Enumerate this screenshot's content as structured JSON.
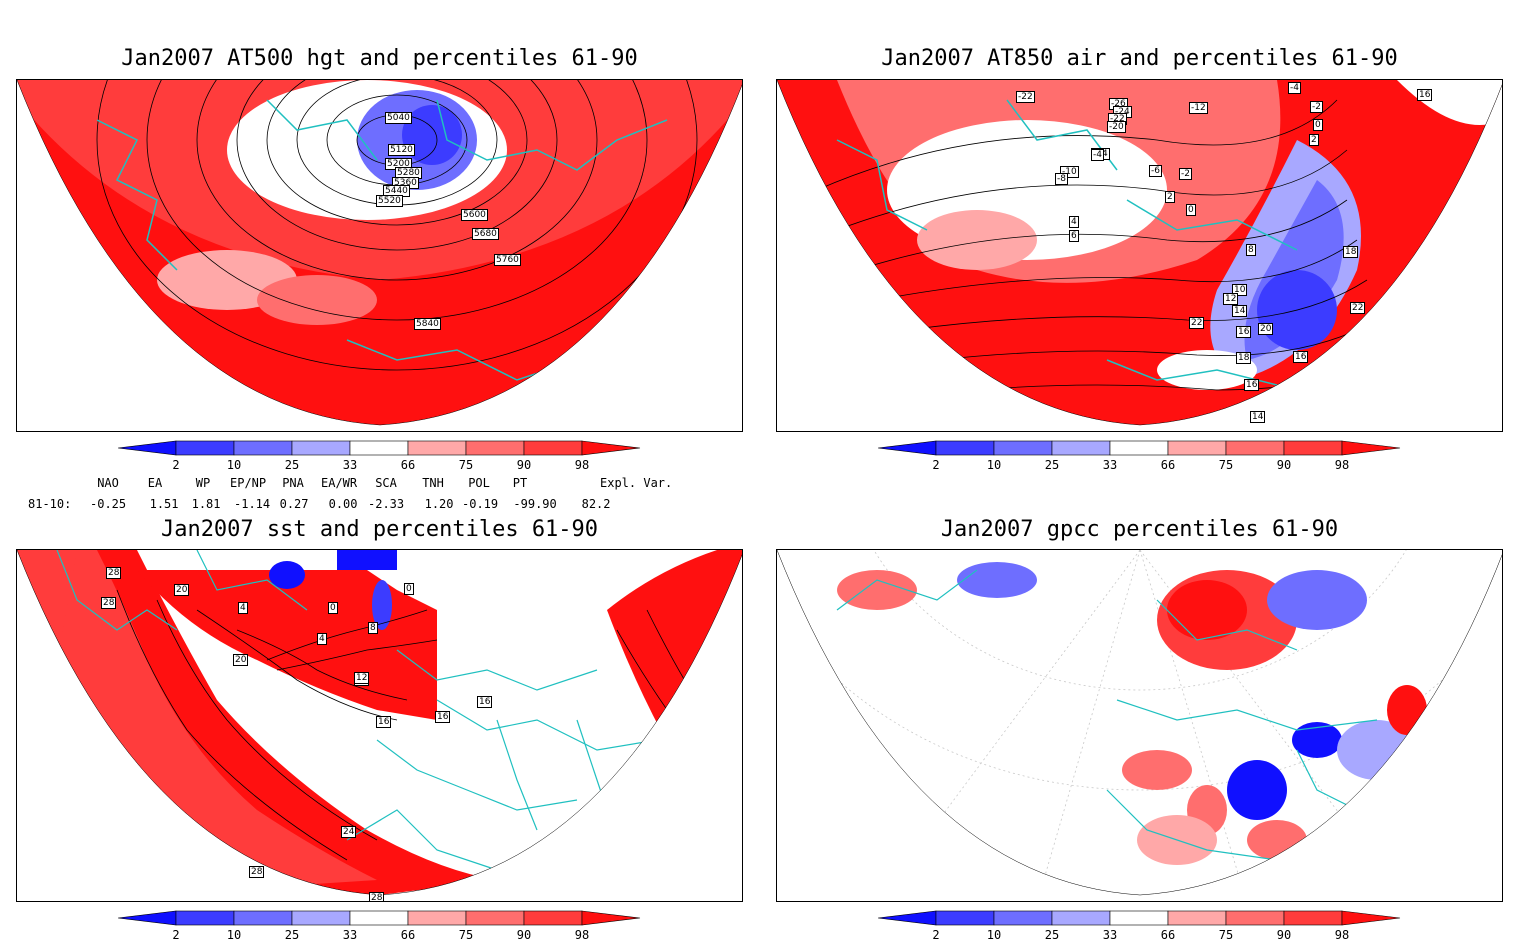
{
  "panels": [
    {
      "title": "Jan2007 AT500 hgt and percentiles 61-90",
      "contour_labels": [
        "5040",
        "5120",
        "5200",
        "5280",
        "5360",
        "5440",
        "5520",
        "5600",
        "5680",
        "5760",
        "5840"
      ]
    },
    {
      "title": "Jan2007 AT850 air and percentiles 61-90",
      "contour_labels": [
        "-22",
        "-26",
        "-24",
        "-22",
        "-20",
        "-14",
        "-12",
        "-10",
        "-8",
        "-4",
        "-6",
        "-2",
        "0",
        "2",
        "4",
        "6",
        "8",
        "10",
        "12",
        "14",
        "16",
        "18",
        "20",
        "22",
        "16",
        "14",
        "16",
        "18",
        "22",
        "-4",
        "-2",
        "0",
        "2",
        "16"
      ]
    },
    {
      "title": "Jan2007 sst and percentiles 61-90",
      "contour_labels": [
        "28",
        "28",
        "20",
        "4",
        "0",
        "0",
        "4",
        "8",
        "12",
        "12",
        "20",
        "16",
        "16",
        "16",
        "24",
        "28",
        "28"
      ]
    },
    {
      "title": "Jan2007 gpcc percentiles 61-90",
      "contour_labels": []
    }
  ],
  "colorbar": {
    "ticks": [
      "2",
      "10",
      "25",
      "33",
      "66",
      "75",
      "90",
      "98"
    ],
    "colors": [
      "#1010ff",
      "#3c3cff",
      "#6e6eff",
      "#a8a8ff",
      "#ffffff",
      "#ffa8a8",
      "#ff6e6e",
      "#ff3c3c",
      "#ff1010"
    ]
  },
  "indices": {
    "headers": [
      "NAO",
      "EA",
      "WP",
      "EP/NP",
      "PNA",
      "EA/WR",
      "SCA",
      "TNH",
      "POL",
      "PT",
      "Expl. Var."
    ],
    "row_label": "81-10:",
    "values": [
      "-0.25",
      "1.51",
      "1.81",
      "-1.14",
      "0.27",
      "0.00",
      "-2.33",
      "1.20",
      "-0.19",
      "-99.90",
      "82.2"
    ]
  }
}
